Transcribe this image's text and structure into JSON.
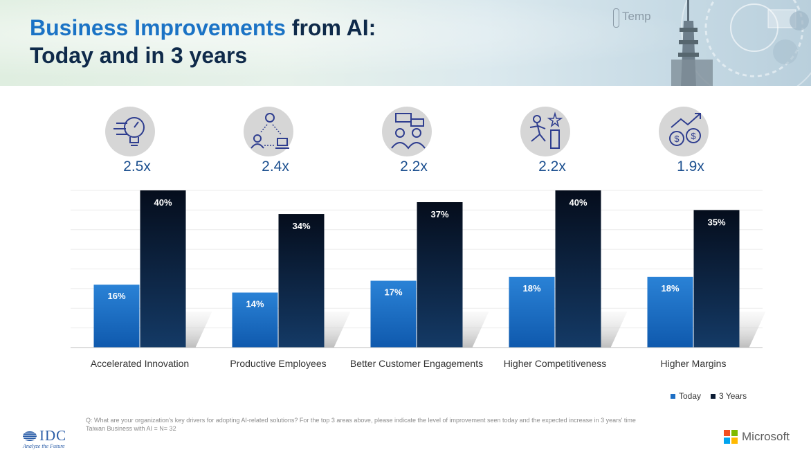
{
  "header": {
    "title_accent": "Business Improvements",
    "title_rest": " from AI:",
    "title_line2": "Today and in 3 years",
    "temp_label": "Temp"
  },
  "chart_data": {
    "type": "bar",
    "categories": [
      "Accelerated Innovation",
      "Productive Employees",
      "Better Customer Engagements",
      "Higher Competitiveness",
      "Higher Margins"
    ],
    "multipliers": [
      "2.5x",
      "2.4x",
      "2.2x",
      "2.2x",
      "1.9x"
    ],
    "icons": [
      "lightbulb-gauge-icon",
      "team-network-icon",
      "customer-chat-icon",
      "runner-star-icon",
      "money-growth-icon"
    ],
    "series": [
      {
        "name": "Today",
        "values": [
          16,
          14,
          17,
          18,
          18
        ],
        "labels": [
          "16%",
          "14%",
          "17%",
          "18%",
          "18%"
        ],
        "color": "#1e6fc5"
      },
      {
        "name": "3 Years",
        "values": [
          40,
          34,
          37,
          40,
          35
        ],
        "labels": [
          "40%",
          "34%",
          "37%",
          "40%",
          "35%"
        ],
        "color": "#0b1b33"
      }
    ],
    "ylim": [
      0,
      40
    ],
    "grid": true,
    "legend": "bottom-right"
  },
  "footnote": {
    "question": "Q: What are your organization's key drivers for adopting AI-related solutions? For the top 3 areas above, please indicate the level of improvement seen today and the expected increase in 3 years' time",
    "sample": "Taiwan Business with AI = N= 32"
  },
  "logos": {
    "idc_word": "IDC",
    "idc_tagline": "Analyze the Future",
    "ms_word": "Microsoft"
  },
  "colors": {
    "title_dark": "#0f2a4a",
    "title_accent": "#1b73c5",
    "icon_stroke": "#2e3d8f",
    "icon_bg": "#d6d6d6"
  }
}
